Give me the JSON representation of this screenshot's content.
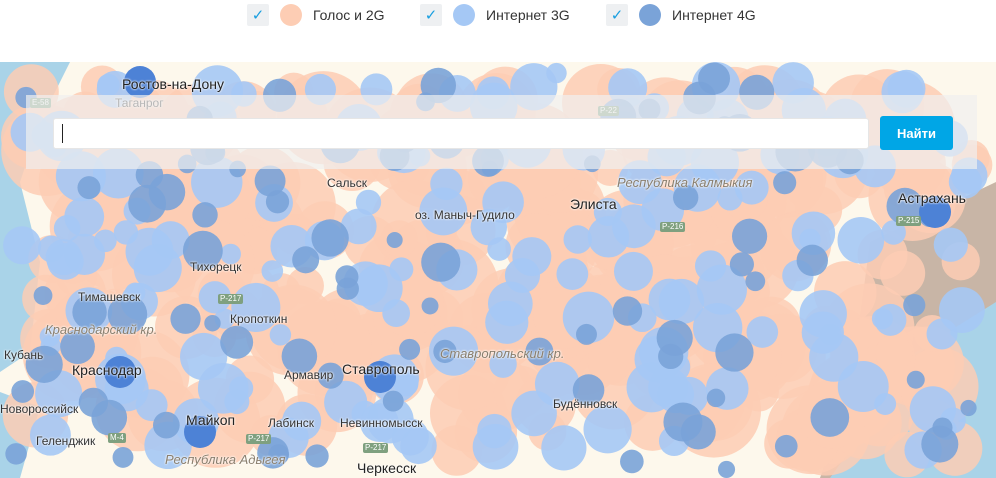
{
  "legend": [
    {
      "label": "Голос и 2G",
      "checked": true,
      "color": "#fdcdb4"
    },
    {
      "label": "Интернет 3G",
      "checked": true,
      "color": "#a5c8f5"
    },
    {
      "label": "Интернет 4G",
      "checked": true,
      "color": "#7aa3d8"
    }
  ],
  "search": {
    "value": "",
    "placeholder": "",
    "button_label": "Найти"
  },
  "map": {
    "colors": {
      "land": "#fdf8ec",
      "sea": "#a9d3e8",
      "voice_2g": "#fdcdb4",
      "internet_3g": "#a5c8f5",
      "internet_4g": "#7aa3d8",
      "city_4g": "#4d82d6",
      "caspian_lowland": "#c8b5a6"
    },
    "cities": [
      {
        "name": "Ростов-на-Дону",
        "big": true
      },
      {
        "name": "Таганрог"
      },
      {
        "name": "Сальск"
      },
      {
        "name": "оз. Маныч-Гудило"
      },
      {
        "name": "Элиста",
        "big": true
      },
      {
        "name": "Астрахань",
        "big": true
      },
      {
        "name": "Тихорецк"
      },
      {
        "name": "Тимашевск"
      },
      {
        "name": "Кропоткин"
      },
      {
        "name": "Кубань"
      },
      {
        "name": "Краснодар",
        "big": true
      },
      {
        "name": "Армавир"
      },
      {
        "name": "Ставрополь",
        "big": true
      },
      {
        "name": "Будённовск"
      },
      {
        "name": "Майкоп",
        "big": true
      },
      {
        "name": "Лабинск"
      },
      {
        "name": "Невинномысск"
      },
      {
        "name": "Геленджик"
      },
      {
        "name": "Новороссийск"
      },
      {
        "name": "Черкесск",
        "big": true
      }
    ],
    "regions": [
      "Республика Калмыкия",
      "Краснодарский кр.",
      "Ставропольский кр.",
      "Республика Адыгея"
    ],
    "roads": [
      "Е-58",
      "Р-22",
      "Р-216",
      "Р-217",
      "Р-215",
      "М-4",
      "Р-217",
      "Р-217"
    ]
  }
}
